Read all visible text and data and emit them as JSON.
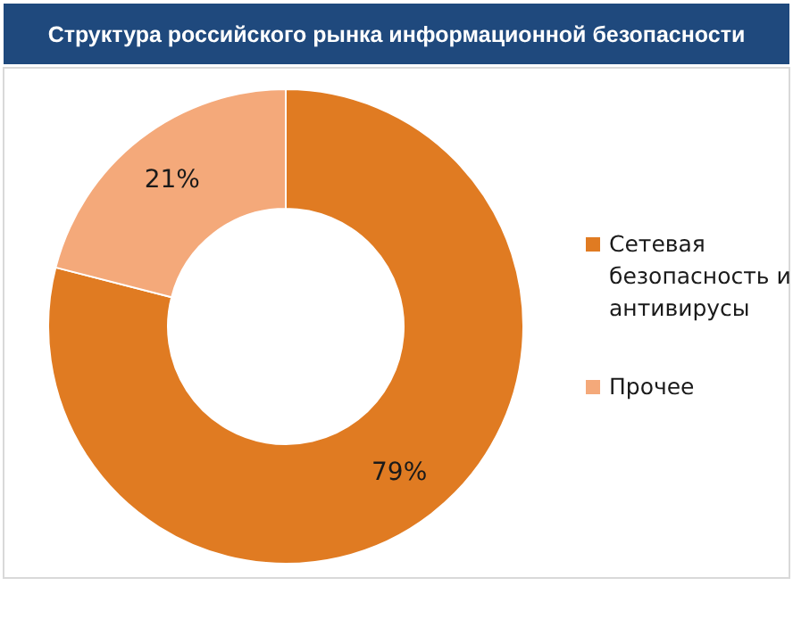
{
  "chart_data": {
    "type": "donut",
    "title": "Структура российского рынка информационной безопасности",
    "categories": [
      "Сетевая безопасность и антивирусы",
      "Прочее"
    ],
    "values": [
      79,
      21
    ],
    "colors": [
      "#e07b22",
      "#f4a97a"
    ],
    "value_labels": [
      "79%",
      "21%"
    ],
    "legend": "right"
  }
}
